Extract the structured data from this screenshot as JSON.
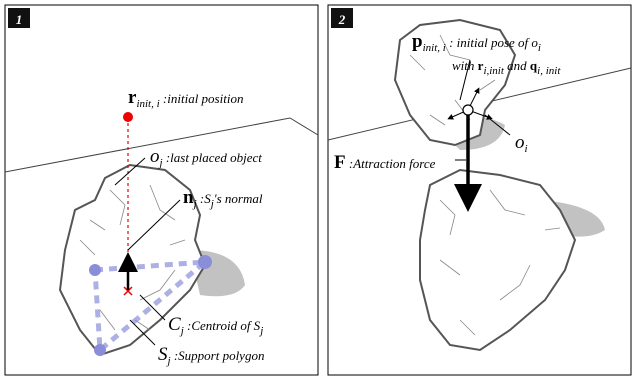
{
  "panels": [
    {
      "badge": "1",
      "labels": [
        [
          {
            "text": "r",
            "style": "bold"
          },
          {
            "text": "init, i",
            "style": "sub"
          },
          {
            "text": " :initial position",
            "style": "italic"
          }
        ],
        [
          {
            "text": "o",
            "style": "symbol"
          },
          {
            "text": "j",
            "style": "sub"
          },
          {
            "text": " :last placed object",
            "style": "italic"
          }
        ],
        [
          {
            "text": "n",
            "style": "bold"
          },
          {
            "text": "j",
            "style": "sub"
          },
          {
            "text": " :S",
            "style": "italic"
          },
          {
            "text": "j",
            "style": "sub"
          },
          {
            "text": "'s normal",
            "style": "italic"
          }
        ],
        [
          {
            "text": "C",
            "style": "symbol"
          },
          {
            "text": "j",
            "style": "sub"
          },
          {
            "text": " :Centroid of S",
            "style": "italic"
          },
          {
            "text": "j",
            "style": "sub"
          }
        ],
        [
          {
            "text": "S",
            "style": "symbol"
          },
          {
            "text": "j",
            "style": "sub"
          },
          {
            "text": " :Support polygon",
            "style": "italic"
          }
        ]
      ]
    },
    {
      "badge": "2",
      "labels": [
        [
          {
            "text": "p",
            "style": "bold"
          },
          {
            "text": "init, i",
            "style": "sub"
          },
          {
            "text": " : initial pose of o",
            "style": "italic"
          },
          {
            "text": "i",
            "style": "sub"
          }
        ],
        [
          {
            "text": "with ",
            "style": "italic"
          },
          {
            "text": "r",
            "style": "boldsmall"
          },
          {
            "text": "i,init",
            "style": "sub"
          },
          {
            "text": " and ",
            "style": "italic"
          },
          {
            "text": "q",
            "style": "boldsmall"
          },
          {
            "text": "i, init",
            "style": "sub"
          }
        ],
        [
          {
            "text": "o",
            "style": "symbol"
          },
          {
            "text": "i",
            "style": "sub"
          }
        ],
        [
          {
            "text": "F",
            "style": "bold"
          },
          {
            "text": " :Attraction force",
            "style": "italic"
          }
        ]
      ]
    }
  ]
}
